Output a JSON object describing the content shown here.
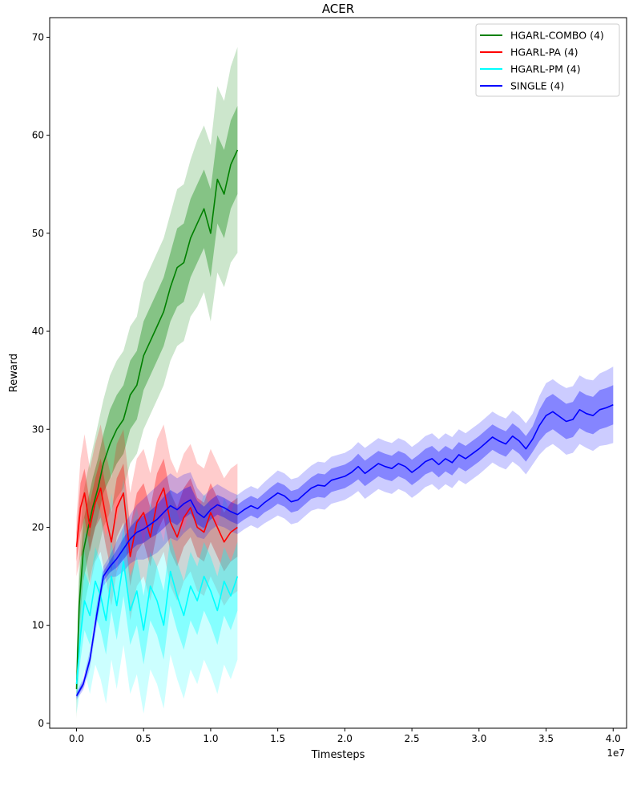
{
  "chart_data": {
    "type": "line",
    "title": "ACER",
    "xlabel": "Timesteps",
    "ylabel": "Reward",
    "x_offset_label": "1e7",
    "xlim": [
      -0.2,
      4.1
    ],
    "ylim": [
      -0.5,
      72
    ],
    "xticks": [
      0.0,
      0.5,
      1.0,
      1.5,
      2.0,
      2.5,
      3.0,
      3.5,
      4.0
    ],
    "xtick_labels": [
      "0.0",
      "0.5",
      "1.0",
      "1.5",
      "2.0",
      "2.5",
      "3.0",
      "3.5",
      "4.0"
    ],
    "yticks": [
      0,
      10,
      20,
      30,
      40,
      50,
      60,
      70
    ],
    "ytick_labels": [
      "0",
      "10",
      "20",
      "30",
      "40",
      "50",
      "60",
      "70"
    ],
    "grid": false,
    "legend_position": "top-right",
    "series": [
      {
        "name": "HGARL-COMBO (4)",
        "color": "#008000",
        "x": [
          0.0,
          0.02,
          0.05,
          0.08,
          0.12,
          0.16,
          0.2,
          0.25,
          0.3,
          0.35,
          0.4,
          0.45,
          0.5,
          0.55,
          0.6,
          0.65,
          0.7,
          0.75,
          0.8,
          0.85,
          0.9,
          0.95,
          1.0,
          1.05,
          1.1,
          1.15,
          1.2
        ],
        "y": [
          3.5,
          12.0,
          17.5,
          19.5,
          22.0,
          24.0,
          26.5,
          28.5,
          30.0,
          31.0,
          33.5,
          34.5,
          37.5,
          39.0,
          40.5,
          42.0,
          44.5,
          46.5,
          47.0,
          49.5,
          51.0,
          52.5,
          50.0,
          55.5,
          54.0,
          57.0,
          58.5
        ],
        "std_inner": [
          1.5,
          2.5,
          3.0,
          3.0,
          3.0,
          3.0,
          3.0,
          3.5,
          3.5,
          3.5,
          3.5,
          3.5,
          3.5,
          3.5,
          3.5,
          3.5,
          3.5,
          4.0,
          4.0,
          4.0,
          4.0,
          4.0,
          4.5,
          4.5,
          4.5,
          4.5,
          4.5
        ],
        "std_outer": [
          3.0,
          5.0,
          6.0,
          6.0,
          6.0,
          6.5,
          6.5,
          7.0,
          7.0,
          7.0,
          7.0,
          7.0,
          7.5,
          7.5,
          7.5,
          7.5,
          7.5,
          8.0,
          8.0,
          8.0,
          8.5,
          8.5,
          9.0,
          9.5,
          9.5,
          10.0,
          10.5
        ]
      },
      {
        "name": "HGARL-PA (4)",
        "color": "#ff0000",
        "x": [
          0.0,
          0.03,
          0.06,
          0.1,
          0.14,
          0.18,
          0.22,
          0.26,
          0.3,
          0.35,
          0.4,
          0.45,
          0.5,
          0.55,
          0.6,
          0.65,
          0.7,
          0.75,
          0.8,
          0.85,
          0.9,
          0.95,
          1.0,
          1.05,
          1.1,
          1.15,
          1.2
        ],
        "y": [
          18.0,
          22.0,
          23.5,
          20.0,
          22.5,
          24.0,
          21.0,
          18.5,
          22.0,
          23.5,
          17.0,
          20.5,
          21.5,
          19.0,
          22.5,
          24.0,
          20.5,
          19.0,
          21.0,
          22.0,
          20.0,
          19.5,
          21.5,
          20.0,
          18.5,
          19.5,
          20.0
        ],
        "std_inner": [
          1.5,
          2.5,
          2.5,
          2.5,
          2.5,
          3.0,
          3.0,
          3.0,
          3.0,
          3.0,
          3.0,
          3.0,
          3.0,
          3.0,
          3.0,
          3.0,
          3.0,
          3.0,
          3.0,
          3.0,
          3.0,
          3.0,
          3.0,
          3.0,
          3.0,
          3.0,
          3.0
        ],
        "std_outer": [
          3.0,
          5.0,
          6.0,
          6.0,
          6.0,
          6.5,
          6.5,
          6.5,
          6.5,
          6.5,
          6.5,
          6.5,
          6.5,
          6.5,
          6.5,
          6.5,
          6.5,
          6.5,
          6.5,
          6.5,
          6.5,
          6.5,
          6.5,
          6.5,
          6.5,
          6.5,
          6.5
        ]
      },
      {
        "name": "HGARL-PM (4)",
        "color": "#00ffff",
        "x": [
          0.0,
          0.03,
          0.06,
          0.1,
          0.14,
          0.18,
          0.22,
          0.26,
          0.3,
          0.35,
          0.4,
          0.45,
          0.5,
          0.55,
          0.6,
          0.65,
          0.7,
          0.75,
          0.8,
          0.85,
          0.9,
          0.95,
          1.0,
          1.05,
          1.1,
          1.15,
          1.2
        ],
        "y": [
          4.0,
          9.0,
          12.5,
          11.0,
          14.5,
          13.0,
          10.5,
          15.0,
          12.0,
          16.5,
          11.5,
          13.5,
          9.5,
          14.0,
          12.5,
          10.0,
          15.5,
          13.0,
          11.0,
          14.0,
          12.5,
          15.0,
          13.5,
          11.5,
          14.5,
          13.0,
          15.0
        ],
        "std_inner": [
          1.5,
          2.5,
          3.0,
          3.0,
          3.5,
          3.5,
          3.5,
          3.5,
          3.5,
          3.5,
          3.5,
          3.5,
          3.5,
          3.5,
          3.5,
          3.5,
          3.5,
          3.5,
          3.5,
          3.5,
          3.5,
          3.5,
          3.5,
          3.5,
          3.5,
          3.5,
          3.5
        ],
        "std_outer": [
          3.0,
          5.5,
          7.0,
          8.0,
          8.5,
          8.5,
          8.5,
          8.5,
          8.5,
          8.5,
          8.5,
          8.5,
          8.5,
          8.5,
          8.5,
          8.5,
          8.5,
          8.5,
          8.5,
          8.5,
          8.5,
          8.5,
          8.5,
          8.5,
          8.5,
          8.5,
          8.5
        ]
      },
      {
        "name": "SINGLE (4)",
        "color": "#0000ff",
        "x": [
          0.0,
          0.05,
          0.1,
          0.15,
          0.2,
          0.25,
          0.3,
          0.35,
          0.4,
          0.45,
          0.5,
          0.55,
          0.6,
          0.65,
          0.7,
          0.75,
          0.8,
          0.85,
          0.9,
          0.95,
          1.0,
          1.05,
          1.1,
          1.15,
          1.2,
          1.25,
          1.3,
          1.35,
          1.4,
          1.45,
          1.5,
          1.55,
          1.6,
          1.65,
          1.7,
          1.75,
          1.8,
          1.85,
          1.9,
          1.95,
          2.0,
          2.05,
          2.1,
          2.15,
          2.2,
          2.25,
          2.3,
          2.35,
          2.4,
          2.45,
          2.5,
          2.55,
          2.6,
          2.65,
          2.7,
          2.75,
          2.8,
          2.85,
          2.9,
          2.95,
          3.0,
          3.05,
          3.1,
          3.15,
          3.2,
          3.25,
          3.3,
          3.35,
          3.4,
          3.45,
          3.5,
          3.55,
          3.6,
          3.65,
          3.7,
          3.75,
          3.8,
          3.85,
          3.9,
          3.95,
          4.0
        ],
        "y": [
          2.8,
          4.0,
          6.5,
          11.0,
          15.0,
          16.0,
          16.8,
          17.8,
          18.8,
          19.5,
          19.8,
          20.3,
          20.8,
          21.5,
          22.2,
          21.8,
          22.4,
          22.8,
          21.5,
          21.0,
          21.8,
          22.3,
          22.0,
          21.6,
          21.3,
          21.8,
          22.2,
          21.9,
          22.5,
          23.0,
          23.5,
          23.2,
          22.6,
          22.8,
          23.4,
          24.0,
          24.3,
          24.2,
          24.8,
          25.0,
          25.2,
          25.6,
          26.2,
          25.5,
          26.0,
          26.5,
          26.2,
          26.0,
          26.5,
          26.2,
          25.6,
          26.1,
          26.7,
          27.0,
          26.4,
          27.0,
          26.6,
          27.4,
          27.0,
          27.5,
          28.0,
          28.6,
          29.2,
          28.8,
          28.5,
          29.3,
          28.8,
          28.0,
          29.0,
          30.4,
          31.4,
          31.8,
          31.3,
          30.8,
          31.0,
          32.0,
          31.6,
          31.4,
          32.0,
          32.2,
          32.5
        ],
        "std_inner": [
          0.2,
          0.3,
          0.4,
          0.5,
          0.5,
          0.6,
          0.9,
          1.1,
          1.2,
          1.3,
          1.4,
          1.4,
          1.5,
          1.6,
          1.6,
          1.6,
          1.5,
          1.4,
          1.2,
          1.1,
          1.0,
          1.0,
          1.0,
          1.0,
          1.0,
          1.0,
          1.0,
          1.0,
          1.0,
          1.1,
          1.1,
          1.1,
          1.1,
          1.1,
          1.1,
          1.1,
          1.2,
          1.2,
          1.2,
          1.2,
          1.2,
          1.2,
          1.3,
          1.3,
          1.3,
          1.3,
          1.3,
          1.3,
          1.3,
          1.3,
          1.3,
          1.3,
          1.3,
          1.3,
          1.3,
          1.3,
          1.3,
          1.3,
          1.3,
          1.3,
          1.3,
          1.3,
          1.3,
          1.3,
          1.3,
          1.3,
          1.3,
          1.3,
          1.3,
          1.6,
          1.8,
          1.8,
          1.8,
          1.8,
          1.8,
          1.9,
          1.9,
          1.9,
          2.0,
          2.0,
          2.0
        ],
        "std_outer": [
          0.4,
          0.6,
          0.9,
          1.0,
          1.0,
          1.1,
          1.8,
          2.3,
          2.5,
          2.8,
          3.1,
          3.3,
          3.4,
          3.4,
          3.3,
          3.2,
          3.0,
          2.8,
          2.5,
          2.2,
          2.1,
          2.1,
          2.0,
          2.0,
          2.0,
          2.0,
          2.0,
          2.0,
          2.1,
          2.2,
          2.3,
          2.3,
          2.3,
          2.3,
          2.3,
          2.3,
          2.4,
          2.4,
          2.4,
          2.4,
          2.4,
          2.4,
          2.5,
          2.6,
          2.6,
          2.6,
          2.6,
          2.6,
          2.6,
          2.6,
          2.6,
          2.6,
          2.6,
          2.6,
          2.6,
          2.6,
          2.6,
          2.6,
          2.6,
          2.6,
          2.6,
          2.6,
          2.6,
          2.6,
          2.6,
          2.6,
          2.6,
          2.6,
          2.6,
          3.0,
          3.3,
          3.3,
          3.3,
          3.4,
          3.4,
          3.5,
          3.5,
          3.6,
          3.7,
          3.8,
          3.9
        ]
      }
    ]
  }
}
